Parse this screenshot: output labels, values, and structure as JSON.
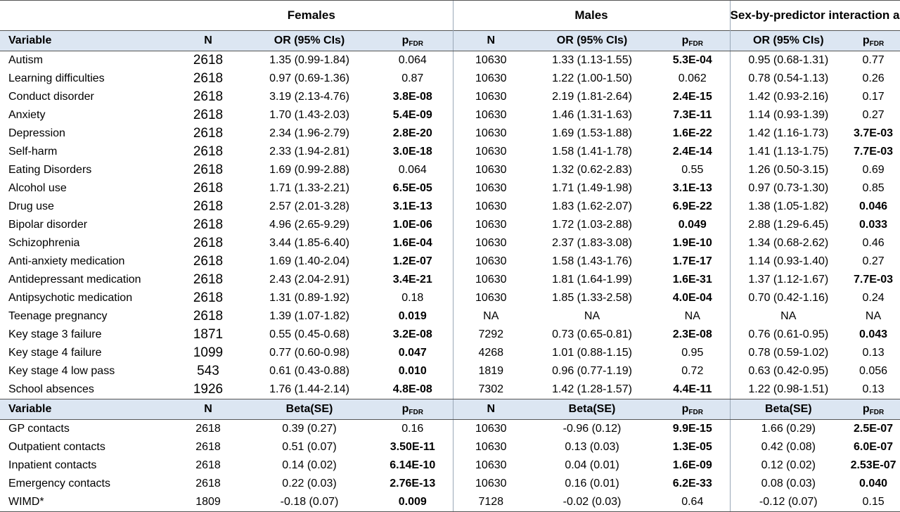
{
  "groups": {
    "females": "Females",
    "males": "Males",
    "interaction": "Sex-by-predictor interaction analysis"
  },
  "header1": {
    "variable": "Variable",
    "n": "N",
    "or": "OR (95% CIs)",
    "p": "p",
    "p_sub": "FDR"
  },
  "header2": {
    "variable": "Variable",
    "n": "N",
    "beta": "Beta(SE)",
    "p": "p",
    "p_sub": "FDR"
  },
  "rows1": [
    {
      "variable": "Autism",
      "f_n": "2618",
      "f_or": "1.35 (0.99-1.84)",
      "f_p": "0.064",
      "f_pb": false,
      "m_n": "10630",
      "m_or": "1.33 (1.13-1.55)",
      "m_p": "5.3E-04",
      "m_pb": true,
      "i_or": "0.95 (0.68-1.31)",
      "i_p": "0.77",
      "i_pb": false
    },
    {
      "variable": "Learning difficulties",
      "f_n": "2618",
      "f_or": "0.97 (0.69-1.36)",
      "f_p": "0.87",
      "f_pb": false,
      "m_n": "10630",
      "m_or": "1.22 (1.00-1.50)",
      "m_p": "0.062",
      "m_pb": false,
      "i_or": "0.78 (0.54-1.13)",
      "i_p": "0.26",
      "i_pb": false
    },
    {
      "variable": "Conduct disorder",
      "f_n": "2618",
      "f_or": "3.19 (2.13-4.76)",
      "f_p": "3.8E-08",
      "f_pb": true,
      "m_n": "10630",
      "m_or": "2.19 (1.81-2.64)",
      "m_p": "2.4E-15",
      "m_pb": true,
      "i_or": "1.42 (0.93-2.16)",
      "i_p": "0.17",
      "i_pb": false
    },
    {
      "variable": "Anxiety",
      "f_n": "2618",
      "f_or": "1.70 (1.43-2.03)",
      "f_p": "5.4E-09",
      "f_pb": true,
      "m_n": "10630",
      "m_or": "1.46 (1.31-1.63)",
      "m_p": "7.3E-11",
      "m_pb": true,
      "i_or": "1.14 (0.93-1.39)",
      "i_p": "0.27",
      "i_pb": false
    },
    {
      "variable": "Depression",
      "f_n": "2618",
      "f_or": "2.34 (1.96-2.79)",
      "f_p": "2.8E-20",
      "f_pb": true,
      "m_n": "10630",
      "m_or": "1.69 (1.53-1.88)",
      "m_p": "1.6E-22",
      "m_pb": true,
      "i_or": "1.42 (1.16-1.73)",
      "i_p": "3.7E-03",
      "i_pb": true
    },
    {
      "variable": "Self-harm",
      "f_n": "2618",
      "f_or": "2.33 (1.94-2.81)",
      "f_p": "3.0E-18",
      "f_pb": true,
      "m_n": "10630",
      "m_or": "1.58 (1.41-1.78)",
      "m_p": "2.4E-14",
      "m_pb": true,
      "i_or": "1.41 (1.13-1.75)",
      "i_p": "7.7E-03",
      "i_pb": true
    },
    {
      "variable": "Eating Disorders",
      "f_n": "2618",
      "f_or": "1.69 (0.99-2.88)",
      "f_p": "0.064",
      "f_pb": false,
      "m_n": "10630",
      "m_or": "1.32 (0.62-2.83)",
      "m_p": "0.55",
      "m_pb": false,
      "i_or": "1.26 (0.50-3.15)",
      "i_p": "0.69",
      "i_pb": false
    },
    {
      "variable": "Alcohol use",
      "f_n": "2618",
      "f_or": "1.71 (1.33-2.21)",
      "f_p": "6.5E-05",
      "f_pb": true,
      "m_n": "10630",
      "m_or": "1.71 (1.49-1.98)",
      "m_p": "3.1E-13",
      "m_pb": true,
      "i_or": "0.97 (0.73-1.30)",
      "i_p": "0.85",
      "i_pb": false
    },
    {
      "variable": "Drug use",
      "f_n": "2618",
      "f_or": "2.57 (2.01-3.28)",
      "f_p": "3.1E-13",
      "f_pb": true,
      "m_n": "10630",
      "m_or": "1.83 (1.62-2.07)",
      "m_p": "6.9E-22",
      "m_pb": true,
      "i_or": "1.38 (1.05-1.82)",
      "i_p": "0.046",
      "i_pb": true
    },
    {
      "variable": "Bipolar disorder",
      "f_n": "2618",
      "f_or": "4.96 (2.65-9.29)",
      "f_p": "1.0E-06",
      "f_pb": true,
      "m_n": "10630",
      "m_or": "1.72 (1.03-2.88)",
      "m_p": "0.049",
      "m_pb": true,
      "i_or": "2.88 (1.29-6.45)",
      "i_p": "0.033",
      "i_pb": true
    },
    {
      "variable": "Schizophrenia",
      "f_n": "2618",
      "f_or": "3.44 (1.85-6.40)",
      "f_p": "1.6E-04",
      "f_pb": true,
      "m_n": "10630",
      "m_or": "2.37 (1.83-3.08)",
      "m_p": "1.9E-10",
      "m_pb": true,
      "i_or": "1.34 (0.68-2.62)",
      "i_p": "0.46",
      "i_pb": false
    },
    {
      "variable": "Anti-anxiety medication",
      "f_n": "2618",
      "f_or": "1.69 (1.40-2.04)",
      "f_p": "1.2E-07",
      "f_pb": true,
      "m_n": "10630",
      "m_or": "1.58 (1.43-1.76)",
      "m_p": "1.7E-17",
      "m_pb": true,
      "i_or": "1.14 (0.93-1.40)",
      "i_p": "0.27",
      "i_pb": false
    },
    {
      "variable": "Antidepressant medication",
      "f_n": "2618",
      "f_or": "2.43 (2.04-2.91)",
      "f_p": "3.4E-21",
      "f_pb": true,
      "m_n": "10630",
      "m_or": "1.81 (1.64-1.99)",
      "m_p": "1.6E-31",
      "m_pb": true,
      "i_or": "1.37 (1.12-1.67)",
      "i_p": "7.7E-03",
      "i_pb": true
    },
    {
      "variable": "Antipsychotic medication",
      "f_n": "2618",
      "f_or": "1.31 (0.89-1.92)",
      "f_p": "0.18",
      "f_pb": false,
      "m_n": "10630",
      "m_or": "1.85 (1.33-2.58)",
      "m_p": "4.0E-04",
      "m_pb": true,
      "i_or": "0.70 (0.42-1.16)",
      "i_p": "0.24",
      "i_pb": false
    },
    {
      "variable": "Teenage pregnancy",
      "f_n": "2618",
      "f_or": "1.39 (1.07-1.82)",
      "f_p": "0.019",
      "f_pb": true,
      "m_n": "NA",
      "m_or": "NA",
      "m_p": "NA",
      "m_pb": false,
      "i_or": "NA",
      "i_p": "NA",
      "i_pb": false
    },
    {
      "variable": "Key stage 3 failure",
      "f_n": "1871",
      "f_or": "0.55 (0.45-0.68)",
      "f_p": "3.2E-08",
      "f_pb": true,
      "m_n": "7292",
      "m_or": "0.73 (0.65-0.81)",
      "m_p": "2.3E-08",
      "m_pb": true,
      "i_or": "0.76 (0.61-0.95)",
      "i_p": "0.043",
      "i_pb": true
    },
    {
      "variable": "Key stage 4 failure",
      "f_n": "1099",
      "f_or": "0.77 (0.60-0.98)",
      "f_p": "0.047",
      "f_pb": true,
      "m_n": "4268",
      "m_or": "1.01 (0.88-1.15)",
      "m_p": "0.95",
      "m_pb": false,
      "i_or": "0.78 (0.59-1.02)",
      "i_p": "0.13",
      "i_pb": false
    },
    {
      "variable": "Key stage 4 low pass",
      "f_n": "543",
      "f_or": "0.61 (0.43-0.88)",
      "f_p": "0.010",
      "f_pb": true,
      "m_n": "1819",
      "m_or": "0.96 (0.77-1.19)",
      "m_p": "0.72",
      "m_pb": false,
      "i_or": "0.63 (0.42-0.95)",
      "i_p": "0.056",
      "i_pb": false
    },
    {
      "variable": "School absences",
      "f_n": "1926",
      "f_or": "1.76 (1.44-2.14)",
      "f_p": "4.8E-08",
      "f_pb": true,
      "m_n": "7302",
      "m_or": "1.42 (1.28-1.57)",
      "m_p": "4.4E-11",
      "m_pb": true,
      "i_or": "1.22 (0.98-1.51)",
      "i_p": "0.13",
      "i_pb": false
    }
  ],
  "rows2": [
    {
      "variable": "GP contacts",
      "f_n": "2618",
      "f_b": "0.39 (0.27)",
      "f_p": "0.16",
      "f_pb": false,
      "m_n": "10630",
      "m_b": "-0.96 (0.12)",
      "m_p": "9.9E-15",
      "m_pb": true,
      "i_b": "1.66 (0.29)",
      "i_p": "2.5E-07",
      "i_pb": true
    },
    {
      "variable": "Outpatient contacts",
      "f_n": "2618",
      "f_b": "0.51 (0.07)",
      "f_p": "3.50E-11",
      "f_pb": true,
      "m_n": "10630",
      "m_b": "0.13 (0.03)",
      "m_p": "1.3E-05",
      "m_pb": true,
      "i_b": "0.42 (0.08)",
      "i_p": "6.0E-07",
      "i_pb": true
    },
    {
      "variable": "Inpatient contacts",
      "f_n": "2618",
      "f_b": "0.14 (0.02)",
      "f_p": "6.14E-10",
      "f_pb": true,
      "m_n": "10630",
      "m_b": "0.04 (0.01)",
      "m_p": "1.6E-09",
      "m_pb": true,
      "i_b": "0.12 (0.02)",
      "i_p": "2.53E-07",
      "i_pb": true
    },
    {
      "variable": "Emergency contacts",
      "f_n": "2618",
      "f_b": "0.22 (0.03)",
      "f_p": "2.76E-13",
      "f_pb": true,
      "m_n": "10630",
      "m_b": "0.16 (0.01)",
      "m_p": "6.2E-33",
      "m_pb": true,
      "i_b": "0.08 (0.03)",
      "i_p": "0.040",
      "i_pb": true
    },
    {
      "variable": "WIMD*",
      "f_n": "1809",
      "f_b": "-0.18 (0.07)",
      "f_p": "0.009",
      "f_pb": true,
      "m_n": "7128",
      "m_b": "-0.02 (0.03)",
      "m_p": "0.64",
      "m_pb": false,
      "i_b": "-0.12 (0.07)",
      "i_p": "0.15",
      "i_pb": false
    }
  ]
}
